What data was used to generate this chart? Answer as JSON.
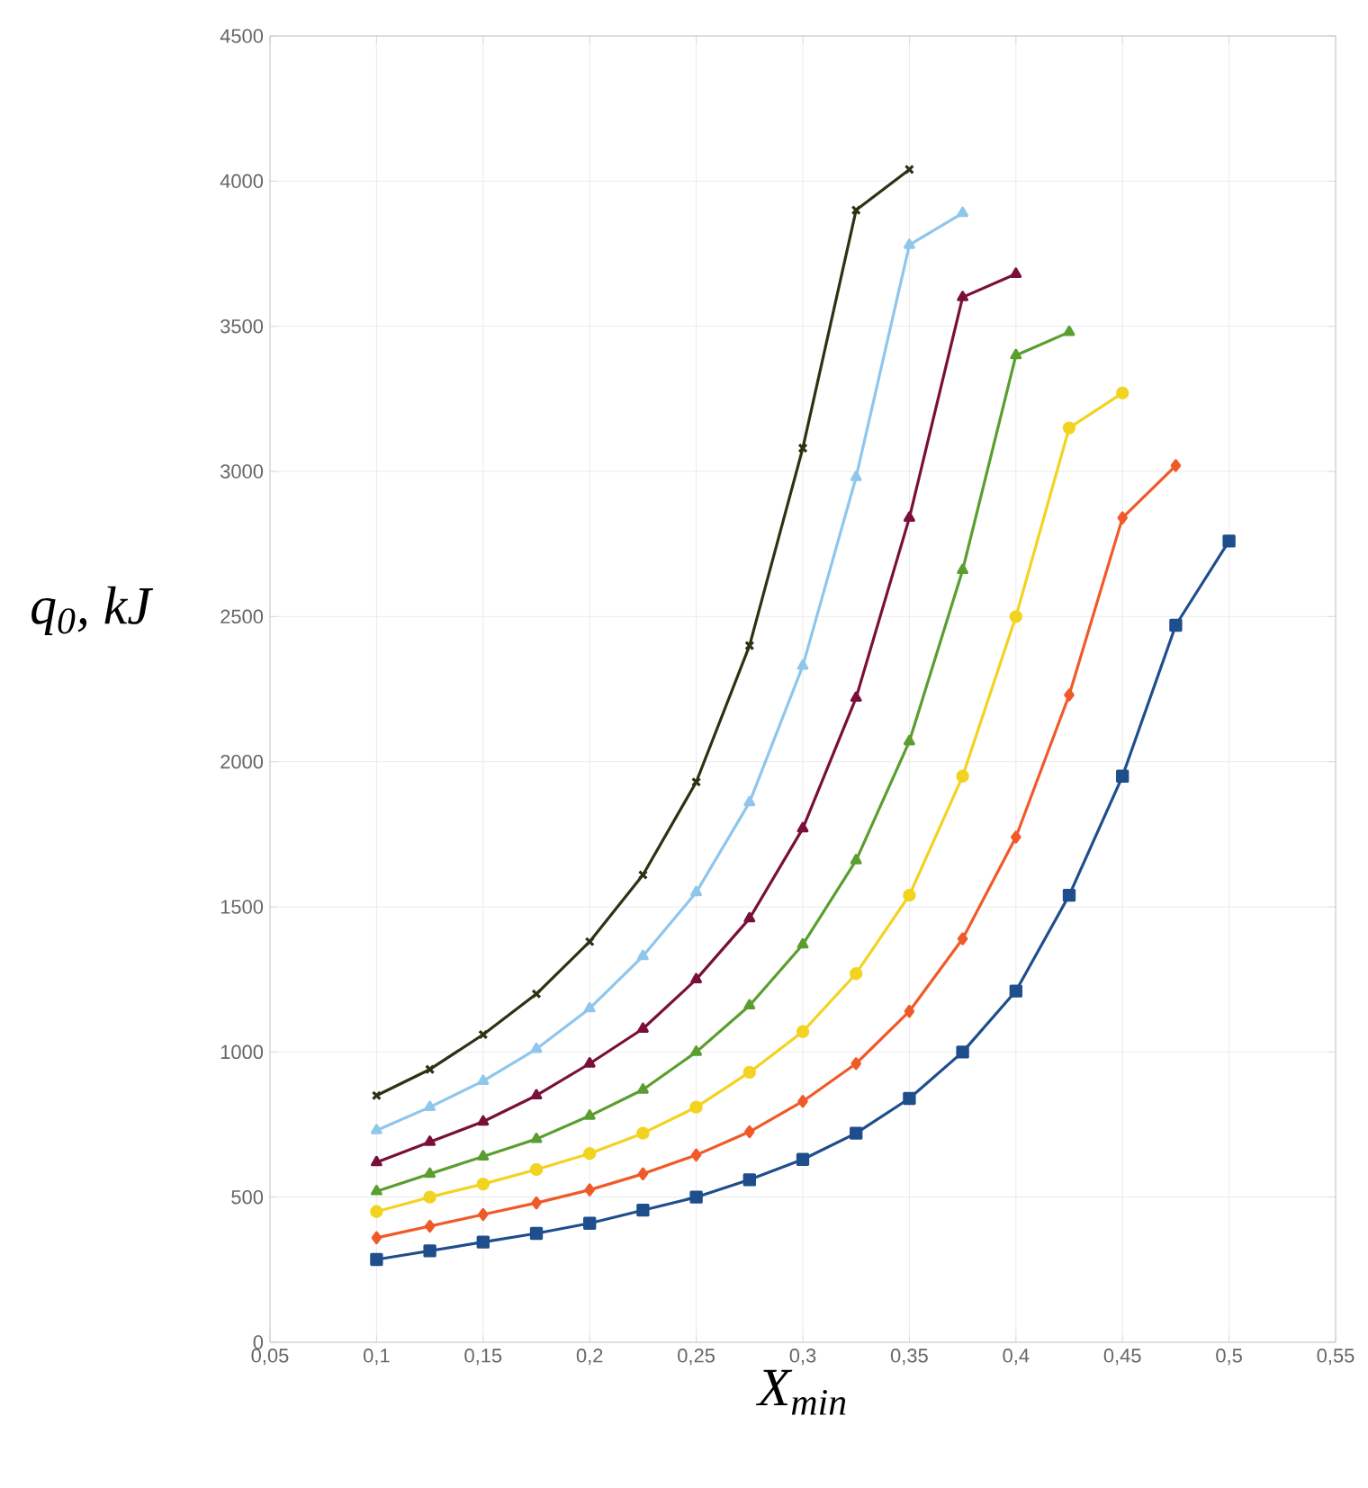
{
  "chart_data": {
    "type": "line",
    "xlabel": "X$_{min}$",
    "ylabel": "q$_{0}$, kJ",
    "xlim": [
      0.05,
      0.55
    ],
    "ylim": [
      0,
      4500
    ],
    "xticks": [
      {
        "value": 0.05,
        "label": "0,05"
      },
      {
        "value": 0.1,
        "label": "0,1"
      },
      {
        "value": 0.15,
        "label": "0,15"
      },
      {
        "value": 0.2,
        "label": "0,2"
      },
      {
        "value": 0.25,
        "label": "0,25"
      },
      {
        "value": 0.3,
        "label": "0,3"
      },
      {
        "value": 0.35,
        "label": "0,35"
      },
      {
        "value": 0.4,
        "label": "0,4"
      },
      {
        "value": 0.45,
        "label": "0,45"
      },
      {
        "value": 0.5,
        "label": "0,5"
      },
      {
        "value": 0.55,
        "label": "0,55"
      }
    ],
    "yticks": [
      0,
      500,
      1000,
      1500,
      2000,
      2500,
      3000,
      3500,
      4000,
      4500
    ],
    "grid": true,
    "line_style": "solid",
    "x": [
      0.1,
      0.125,
      0.15,
      0.175,
      0.2,
      0.225,
      0.25,
      0.275,
      0.3,
      0.325,
      0.35,
      0.375,
      0.4,
      0.425,
      0.45,
      0.475,
      0.5
    ],
    "series": [
      {
        "color": "#1f4e8c",
        "marker": "square",
        "values": [
          285,
          315,
          345,
          375,
          410,
          455,
          500,
          560,
          630,
          720,
          840,
          1000,
          1210,
          1540,
          1950,
          2470,
          2760
        ]
      },
      {
        "color": "#f05a28",
        "marker": "diamond",
        "values": [
          360,
          400,
          440,
          480,
          525,
          580,
          645,
          725,
          830,
          960,
          1140,
          1390,
          1740,
          2230,
          2840,
          3020,
          null
        ]
      },
      {
        "color": "#f2d320",
        "marker": "circle",
        "values": [
          450,
          500,
          545,
          595,
          650,
          720,
          810,
          930,
          1070,
          1270,
          1540,
          1950,
          2500,
          3150,
          3270,
          null,
          null
        ]
      },
      {
        "color": "#5a9e2f",
        "marker": "triangle",
        "values": [
          520,
          580,
          640,
          700,
          780,
          870,
          1000,
          1160,
          1370,
          1660,
          2070,
          2660,
          3400,
          3480,
          null,
          null,
          null
        ]
      },
      {
        "color": "#7a0f3a",
        "marker": "triangle",
        "values": [
          620,
          690,
          760,
          850,
          960,
          1080,
          1250,
          1460,
          1770,
          2220,
          2840,
          3600,
          3680,
          null,
          null,
          null,
          null
        ]
      },
      {
        "color": "#8ec6ec",
        "marker": "triangle",
        "values": [
          730,
          810,
          900,
          1010,
          1150,
          1330,
          1550,
          1860,
          2330,
          2980,
          3780,
          3890,
          null,
          null,
          null,
          null,
          null
        ]
      },
      {
        "color": "#2b3312",
        "marker": "cross",
        "values": [
          850,
          940,
          1060,
          1200,
          1380,
          1610,
          1930,
          2400,
          3080,
          3900,
          4040,
          null,
          null,
          null,
          null,
          null,
          null
        ]
      }
    ]
  }
}
